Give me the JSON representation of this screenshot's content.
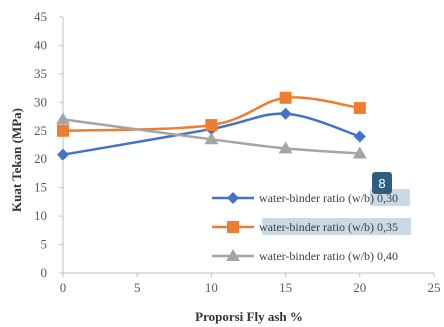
{
  "chart_data": {
    "type": "line",
    "xlabel": "Proporsi Fly ash %",
    "ylabel": "Kuat Tekan (MPa)",
    "xlim": [
      0,
      25
    ],
    "ylim": [
      0,
      45
    ],
    "x_ticks": [
      0,
      5,
      10,
      15,
      20,
      25
    ],
    "y_ticks": [
      0,
      5,
      10,
      15,
      20,
      25,
      30,
      35,
      40,
      45
    ],
    "x": [
      0,
      10,
      15,
      20
    ],
    "series": [
      {
        "name": "water-binder ratio (w/b) 0,30",
        "values": [
          20.8,
          25.3,
          28.0,
          24.0
        ],
        "color": "#4472C4",
        "marker": "diamond"
      },
      {
        "name": "water-binder ratio (w/b) 0,35",
        "values": [
          25.0,
          26.0,
          30.8,
          29.0
        ],
        "color": "#ED7D31",
        "marker": "square"
      },
      {
        "name": "water-binder ratio (w/b) 0,40",
        "values": [
          27.0,
          23.5,
          21.9,
          21.0
        ],
        "color": "#A5A5A5",
        "marker": "triangle"
      }
    ],
    "legend_position": "bottom-right",
    "grid": false
  },
  "badge": {
    "label": "8",
    "color": "#2E5F7F"
  },
  "legend_highlight_color": "#C9D9E6"
}
